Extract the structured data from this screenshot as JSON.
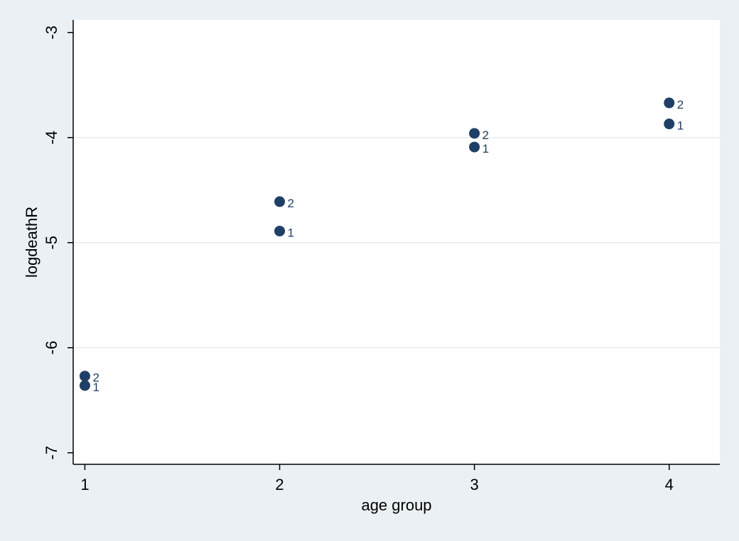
{
  "chart_data": {
    "type": "scatter",
    "title": "",
    "xlabel": "age group",
    "ylabel": "logdeathR",
    "xlim": [
      0.94,
      4.26
    ],
    "ylim": [
      -7.11,
      -2.88
    ],
    "xticks": [
      1,
      2,
      3,
      4
    ],
    "yticks": [
      -7,
      -6,
      -5,
      -4,
      -3
    ],
    "xtick_labels": [
      "1",
      "2",
      "3",
      "4"
    ],
    "ytick_labels": [
      "-7",
      "-6",
      "-5",
      "-4",
      "-3"
    ],
    "grid": "horizontal",
    "legend": "none",
    "points": [
      {
        "x": 1,
        "y": -6.36,
        "label": "1"
      },
      {
        "x": 1,
        "y": -6.27,
        "label": "2"
      },
      {
        "x": 2,
        "y": -4.89,
        "label": "1"
      },
      {
        "x": 2,
        "y": -4.61,
        "label": "2"
      },
      {
        "x": 3,
        "y": -4.09,
        "label": "1"
      },
      {
        "x": 3,
        "y": -3.96,
        "label": "2"
      },
      {
        "x": 4,
        "y": -3.87,
        "label": "1"
      },
      {
        "x": 4,
        "y": -3.67,
        "label": "2"
      }
    ]
  },
  "colors": {
    "page_background": "#eaf0f3",
    "plot_background": "#ffffff",
    "marker": "#1f3f66",
    "marker_label": "#1f3f66",
    "gridline": "#e8edf0",
    "axis": "#000000"
  }
}
